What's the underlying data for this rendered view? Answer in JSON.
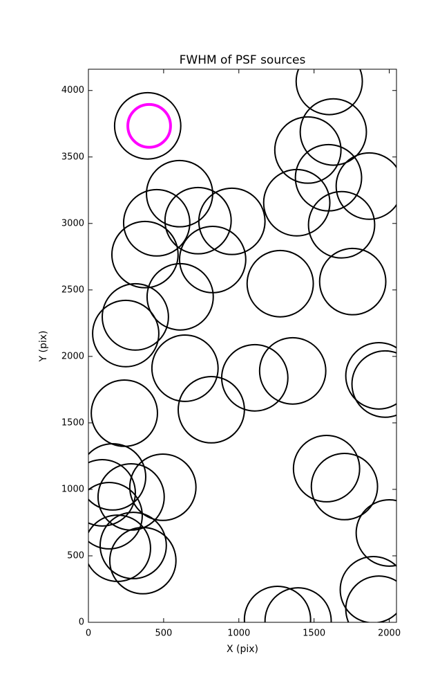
{
  "chart_data": {
    "type": "circles",
    "title": "FWHM of PSF sources",
    "x_label": "X (pix)",
    "y_label": "Y (pix)",
    "xlim": [
      0,
      2048
    ],
    "ylim": [
      0,
      4160
    ],
    "xticks": [
      0,
      500,
      1000,
      1500,
      2000
    ],
    "yticks": [
      0,
      500,
      1000,
      1500,
      2000,
      2500,
      3000,
      3500,
      4000
    ],
    "series": [
      {
        "color": "#000000",
        "radius": 220,
        "x": [
          394,
          1601,
          1628,
          1459,
          1596,
          1867,
          1385,
          1683,
          606,
          729,
          454,
          954,
          376,
          826,
          1275,
          1757,
          610,
          312,
          248,
          642,
          1931,
          1972,
          1106,
          1358,
          817,
          239,
          1583,
          1702,
          161,
          495,
          92,
          284,
          138,
          2000,
          298,
          193,
          362,
          1894,
          1931,
          1257,
          1394
        ],
        "values": [
          3734,
          4068,
          3688,
          3552,
          3344,
          3281,
          3156,
          2990,
          3224,
          3021,
          3005,
          3016,
          2766,
          2729,
          2547,
          2563,
          2448,
          2297,
          2172,
          1911,
          1854,
          1792,
          1839,
          1891,
          1599,
          1573,
          1156,
          1021,
          1094,
          1016,
          974,
          943,
          802,
          672,
          578,
          557,
          464,
          245,
          99,
          21,
          10
        ]
      },
      {
        "color": "#ff00ff",
        "radius": 142,
        "x": [
          404
        ],
        "values": [
          3734
        ]
      }
    ]
  }
}
